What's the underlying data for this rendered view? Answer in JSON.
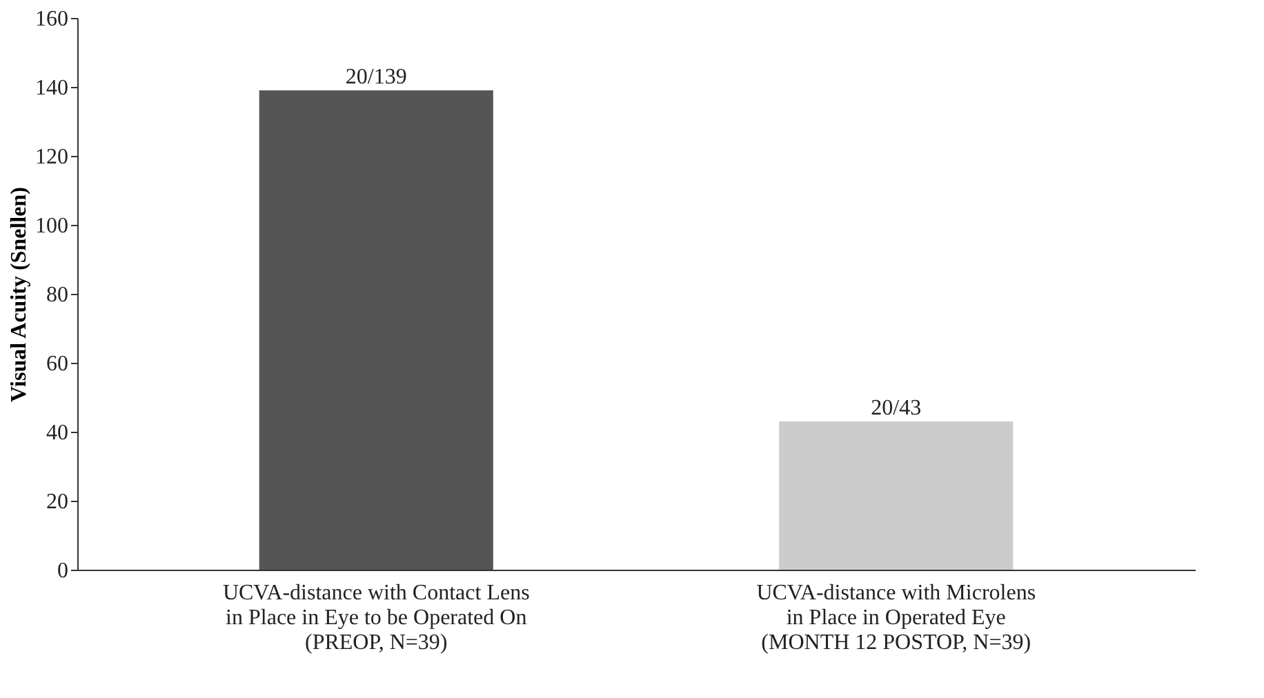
{
  "chart_data": {
    "type": "bar",
    "ylabel": "Visual Acuity (Snellen)",
    "categories": [
      "UCVA-distance with Contact Lens\nin Place in Eye to be Operated On\n(PREOP, N=39)",
      "UCVA-distance with Microlens\nin Place in Operated Eye\n(MONTH 12 POSTOP, N=39)"
    ],
    "values": [
      139,
      43
    ],
    "colors": [
      "#555555",
      "#cccccc"
    ],
    "value_labels": [
      "20/139",
      "20/43"
    ],
    "ylim": [
      0,
      160
    ],
    "yticks": [
      0,
      20,
      40,
      60,
      80,
      100,
      120,
      140,
      160
    ],
    "grid": false
  }
}
